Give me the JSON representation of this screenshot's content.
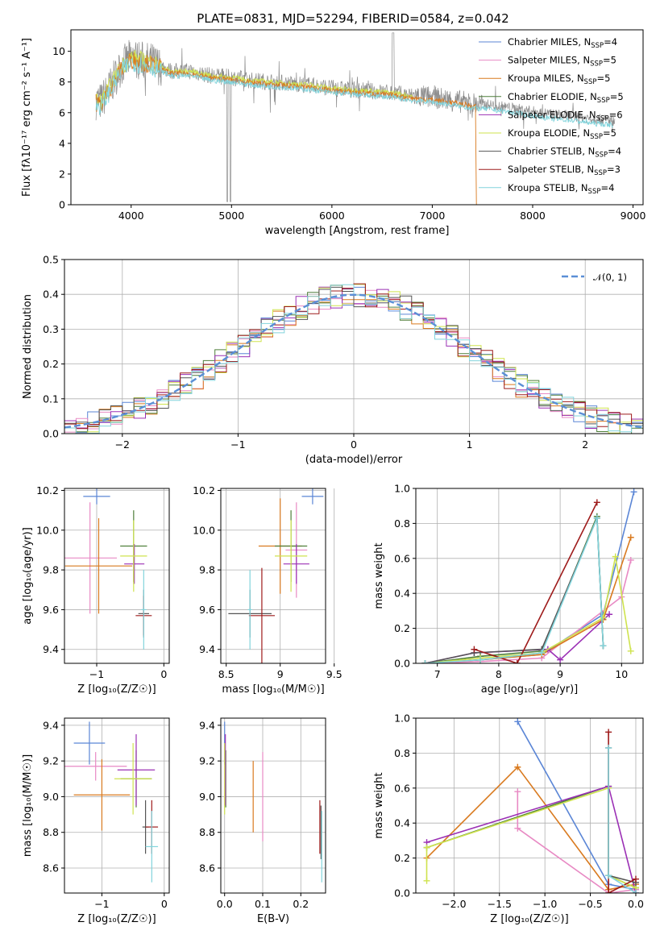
{
  "title": "PLATE=0831, MJD=52294, FIBERID=0584, z=0.042",
  "colors": {
    "Chabrier MILES": "#5b86d6",
    "Salpeter MILES": "#e88ac4",
    "Kroupa MILES": "#d97a1f",
    "Chabrier ELODIE": "#4f7f3a",
    "Salpeter ELODIE": "#9b30b5",
    "Kroupa ELODIE": "#cfe34e",
    "Chabrier STELIB": "#555555",
    "Salpeter STELIB": "#9e1b1b",
    "Kroupa STELIB": "#82d4dc",
    "data": "#8c8c8c",
    "normal": "#5b8fd6"
  },
  "chart_data": [
    {
      "type": "line",
      "id": "spectrum",
      "title": "PLATE=0831, MJD=52294, FIBERID=0584, z=0.042",
      "xlabel": "wavelength [Angstrom, rest frame]",
      "ylabel": "Flux [fλ10⁻¹⁷ erg cm⁻² s⁻¹ A⁻¹]",
      "xlim": [
        3400,
        9100
      ],
      "ylim": [
        0,
        11.4
      ],
      "xticks": [
        4000,
        5000,
        6000,
        7000,
        8000,
        9000
      ],
      "yticks": [
        0,
        2,
        4,
        6,
        8,
        10
      ],
      "legend_position": "top-right",
      "legend": [
        {
          "label": "Chabrier MILES, N",
          "sub": "SSP",
          "suffix": "=4"
        },
        {
          "label": "Salpeter MILES, N",
          "sub": "SSP",
          "suffix": "=5"
        },
        {
          "label": "Kroupa MILES, N",
          "sub": "SSP",
          "suffix": "=5"
        },
        {
          "label": "Chabrier ELODIE, N",
          "sub": "SSP",
          "suffix": "=5"
        },
        {
          "label": "Salpeter ELODIE, N",
          "sub": "SSP",
          "suffix": "=6"
        },
        {
          "label": "Kroupa ELODIE, N",
          "sub": "SSP",
          "suffix": "=5"
        },
        {
          "label": "Chabrier STELIB, N",
          "sub": "SSP",
          "suffix": "=4"
        },
        {
          "label": "Salpeter STELIB, N",
          "sub": "SSP",
          "suffix": "=3"
        },
        {
          "label": "Kroupa STELIB, N",
          "sub": "SSP",
          "suffix": "=4"
        }
      ],
      "continuum": {
        "x": [
          3650,
          3700,
          3800,
          3900,
          4000,
          4100,
          4200,
          4300,
          4400,
          4600,
          4800,
          5000,
          5200,
          5400,
          5600,
          5800,
          6000,
          6200,
          6400,
          6600,
          6800,
          7000,
          7200,
          7400,
          7600,
          7800,
          8000,
          8200,
          8400,
          8600,
          8800
        ],
        "y": [
          6.8,
          6.7,
          7.8,
          9.0,
          9.6,
          9.4,
          9.3,
          9.0,
          8.7,
          8.7,
          8.4,
          8.3,
          8.1,
          8.0,
          7.9,
          7.8,
          7.6,
          7.5,
          7.4,
          7.3,
          7.1,
          7.0,
          6.8,
          6.6,
          6.5,
          6.3,
          6.1,
          5.9,
          5.8,
          5.6,
          5.5
        ]
      }
    },
    {
      "type": "histogram",
      "id": "residuals",
      "xlabel": "(data-model)/error",
      "ylabel": "Normed distribution",
      "xlim": [
        -2.5,
        2.5
      ],
      "ylim": [
        0,
        0.5
      ],
      "xticks": [
        -2,
        -1,
        0,
        1,
        2
      ],
      "yticks": [
        0.0,
        0.1,
        0.2,
        0.3,
        0.4,
        0.5
      ],
      "legend": "𝒩(0, 1)",
      "legend_position": "top-right",
      "bin_width": 0.1
    },
    {
      "type": "errorbar",
      "id": "age-vs-Z",
      "xlabel": "Z [log₁₀(Z/Z☉)]",
      "ylabel": "age  [log₁₀(age/yr)]",
      "xlim": [
        -1.48,
        0.08
      ],
      "ylim": [
        9.33,
        10.21
      ],
      "xticks": [
        -1,
        0
      ],
      "yticks": [
        9.4,
        9.6,
        9.8,
        10.0,
        10.2
      ],
      "points": [
        {
          "model": "Chabrier MILES",
          "x": -1.0,
          "xerr": 0.2,
          "y": 10.17,
          "yerr": 0.04
        },
        {
          "model": "Salpeter MILES",
          "x": -1.1,
          "xerr": 0.4,
          "y": 9.86,
          "yerr": 0.28
        },
        {
          "model": "Kroupa MILES",
          "x": -0.97,
          "xerr": 0.5,
          "y": 9.82,
          "yerr": 0.24
        },
        {
          "model": "Chabrier ELODIE",
          "x": -0.45,
          "xerr": 0.2,
          "y": 9.92,
          "yerr": 0.18
        },
        {
          "model": "Salpeter ELODIE",
          "x": -0.44,
          "xerr": 0.15,
          "y": 9.83,
          "yerr": 0.1
        },
        {
          "model": "Kroupa ELODIE",
          "x": -0.45,
          "xerr": 0.2,
          "y": 9.87,
          "yerr": 0.18
        },
        {
          "model": "Chabrier STELIB",
          "x": -0.3,
          "xerr": 0.08,
          "y": 9.58,
          "yerr": 0.12
        },
        {
          "model": "Salpeter STELIB",
          "x": -0.3,
          "xerr": 0.12,
          "y": 9.57,
          "yerr": 0.1
        },
        {
          "model": "Kroupa STELIB",
          "x": -0.3,
          "xerr": 0.04,
          "y": 9.6,
          "yerr": 0.2
        }
      ]
    },
    {
      "type": "errorbar",
      "id": "age-vs-mass",
      "xlabel": "mass [log₁₀(M/M☉)]",
      "xlim": [
        8.45,
        9.42
      ],
      "ylim": [
        9.33,
        10.21
      ],
      "xticks": [
        8.5,
        9.0,
        9.5
      ],
      "yticks": [
        9.4,
        9.6,
        9.8,
        10.0,
        10.2
      ],
      "points": [
        {
          "model": "Chabrier MILES",
          "x": 9.3,
          "xerr": 0.1,
          "y": 10.17,
          "yerr": 0.04
        },
        {
          "model": "Salpeter MILES",
          "x": 9.15,
          "xerr": 0.1,
          "y": 9.9,
          "yerr": 0.24
        },
        {
          "model": "Kroupa MILES",
          "x": 9.0,
          "xerr": 0.2,
          "y": 9.92,
          "yerr": 0.24
        },
        {
          "model": "Chabrier ELODIE",
          "x": 9.1,
          "xerr": 0.15,
          "y": 9.92,
          "yerr": 0.18
        },
        {
          "model": "Salpeter ELODIE",
          "x": 9.15,
          "xerr": 0.12,
          "y": 9.83,
          "yerr": 0.1
        },
        {
          "model": "Kroupa ELODIE",
          "x": 9.1,
          "xerr": 0.15,
          "y": 9.87,
          "yerr": 0.18
        },
        {
          "model": "Chabrier STELIB",
          "x": 8.72,
          "xerr": 0.2,
          "y": 9.58,
          "yerr": 0.12
        },
        {
          "model": "Salpeter STELIB",
          "x": 8.83,
          "xerr": 0.12,
          "y": 9.57,
          "yerr": 0.24
        },
        {
          "model": "Kroupa STELIB",
          "x": 8.72,
          "xerr": 0.02,
          "y": 9.6,
          "yerr": 0.2
        }
      ]
    },
    {
      "type": "line",
      "id": "mass-weight-vs-age",
      "xlabel": "age  [log₁₀(age/yr)]",
      "ylabel": "mass weight",
      "xlim": [
        6.65,
        10.35
      ],
      "ylim": [
        0,
        1
      ],
      "xticks": [
        7,
        8,
        9,
        10
      ],
      "yticks": [
        0.0,
        0.2,
        0.4,
        0.6,
        0.8,
        1.0
      ],
      "series": [
        {
          "model": "Chabrier MILES",
          "x": [
            6.8,
            7.7,
            8.7,
            9.7,
            10.2
          ],
          "y": [
            0.0,
            0.02,
            0.05,
            0.28,
            0.98
          ]
        },
        {
          "model": "Salpeter MILES",
          "x": [
            6.8,
            7.7,
            8.7,
            10.0,
            10.15
          ],
          "y": [
            0.0,
            0.01,
            0.03,
            0.38,
            0.59
          ]
        },
        {
          "model": "Kroupa MILES",
          "x": [
            6.8,
            7.7,
            8.7,
            9.7,
            10.15
          ],
          "y": [
            0.0,
            0.02,
            0.05,
            0.25,
            0.72
          ]
        },
        {
          "model": "Chabrier ELODIE",
          "x": [
            6.8,
            7.7,
            8.7,
            9.6,
            9.7
          ],
          "y": [
            0.0,
            0.04,
            0.07,
            0.84,
            0.1
          ]
        },
        {
          "model": "Salpeter ELODIE",
          "x": [
            6.8,
            7.6,
            8.8,
            9.0,
            9.8
          ],
          "y": [
            0.0,
            0.06,
            0.08,
            0.02,
            0.28
          ]
        },
        {
          "model": "Kroupa ELODIE",
          "x": [
            6.8,
            7.7,
            8.7,
            9.7,
            9.9,
            10.15
          ],
          "y": [
            0.0,
            0.03,
            0.06,
            0.26,
            0.61,
            0.07
          ]
        },
        {
          "model": "Chabrier STELIB",
          "x": [
            6.8,
            7.6,
            8.7,
            9.6,
            9.7
          ],
          "y": [
            0.0,
            0.06,
            0.08,
            0.83,
            0.1
          ]
        },
        {
          "model": "Salpeter STELIB",
          "x": [
            7.6,
            8.3,
            9.6
          ],
          "y": [
            0.08,
            0.0,
            0.92
          ]
        },
        {
          "model": "Kroupa STELIB",
          "x": [
            6.8,
            7.7,
            8.7,
            9.6,
            9.7
          ],
          "y": [
            0.0,
            0.02,
            0.06,
            0.83,
            0.1
          ]
        }
      ]
    },
    {
      "type": "errorbar",
      "id": "mass-vs-Z",
      "xlabel": "Z [log₁₀(Z/Z☉)]",
      "ylabel": "mass [log₁₀(M/M☉)]",
      "xlim": [
        -1.6,
        0.08
      ],
      "ylim": [
        8.46,
        9.44
      ],
      "xticks": [
        -1,
        0
      ],
      "yticks": [
        8.6,
        8.8,
        9.0,
        9.2,
        9.4
      ],
      "points": [
        {
          "model": "Chabrier MILES",
          "x": -1.2,
          "xerr": 0.25,
          "y": 9.3,
          "yerr": 0.12
        },
        {
          "model": "Salpeter MILES",
          "x": -1.1,
          "xerr": 0.5,
          "y": 9.17,
          "yerr": 0.08
        },
        {
          "model": "Kroupa MILES",
          "x": -1.0,
          "xerr": 0.45,
          "y": 9.01,
          "yerr": 0.2
        },
        {
          "model": "Chabrier ELODIE",
          "x": -0.45,
          "xerr": 0.25,
          "y": 9.1,
          "yerr": 0.16
        },
        {
          "model": "Salpeter ELODIE",
          "x": -0.45,
          "xerr": 0.3,
          "y": 9.15,
          "yerr": 0.2
        },
        {
          "model": "Kroupa ELODIE",
          "x": -0.5,
          "xerr": 0.3,
          "y": 9.1,
          "yerr": 0.2
        },
        {
          "model": "Chabrier STELIB",
          "x": -0.3,
          "xerr": 0.05,
          "y": 8.83,
          "yerr": 0.15
        },
        {
          "model": "Salpeter STELIB",
          "x": -0.2,
          "xerr": 0.1,
          "y": 8.83,
          "yerr": 0.15
        },
        {
          "model": "Kroupa STELIB",
          "x": -0.2,
          "xerr": 0.1,
          "y": 8.72,
          "yerr": 0.2
        }
      ]
    },
    {
      "type": "errorbar",
      "id": "mass-vs-ebv",
      "xlabel": "E(B-V)",
      "xlim": [
        -0.01,
        0.265
      ],
      "ylim": [
        8.46,
        9.44
      ],
      "xticks": [
        0.0,
        0.1,
        0.2
      ],
      "yticks": [
        8.6,
        8.8,
        9.0,
        9.2,
        9.4
      ],
      "points": [
        {
          "model": "Chabrier MILES",
          "x": 0.0,
          "y": 9.3,
          "yerr": 0.12
        },
        {
          "model": "Salpeter MILES",
          "x": 0.1,
          "y": 9.0,
          "yerr": 0.25
        },
        {
          "model": "Kroupa MILES",
          "x": 0.075,
          "y": 9.0,
          "yerr": 0.2
        },
        {
          "model": "Chabrier ELODIE",
          "x": 0.003,
          "y": 9.1,
          "yerr": 0.16
        },
        {
          "model": "Salpeter ELODIE",
          "x": 0.002,
          "y": 9.15,
          "yerr": 0.2
        },
        {
          "model": "Kroupa ELODIE",
          "x": 0.0,
          "y": 9.1,
          "yerr": 0.2
        },
        {
          "model": "Chabrier STELIB",
          "x": 0.253,
          "y": 8.8,
          "yerr": 0.15
        },
        {
          "model": "Salpeter STELIB",
          "x": 0.25,
          "y": 8.83,
          "yerr": 0.15
        },
        {
          "model": "Kroupa STELIB",
          "x": 0.255,
          "y": 8.72,
          "yerr": 0.2
        }
      ]
    },
    {
      "type": "line",
      "id": "mass-weight-vs-Z",
      "xlabel": "Z [log₁₀(Z/Z☉)]",
      "ylabel": "mass weight",
      "xlim": [
        -2.42,
        0.08
      ],
      "ylim": [
        0,
        1
      ],
      "xticks": [
        -2.0,
        -1.5,
        -1.0,
        -0.5,
        0.0
      ],
      "yticks": [
        0.0,
        0.2,
        0.4,
        0.6,
        0.8,
        1.0
      ],
      "series": [
        {
          "model": "Chabrier MILES",
          "x": [
            -1.3,
            -0.3,
            0.0
          ],
          "y": [
            0.98,
            0.05,
            0.02
          ]
        },
        {
          "model": "Salpeter MILES",
          "x": [
            -1.3,
            -1.3,
            -0.3,
            0.0
          ],
          "y": [
            0.58,
            0.37,
            0.0,
            0.02
          ]
        },
        {
          "model": "Kroupa MILES",
          "x": [
            -2.3,
            -1.3,
            -0.3,
            0.0
          ],
          "y": [
            0.2,
            0.72,
            0.02,
            0.05
          ]
        },
        {
          "model": "Chabrier ELODIE",
          "x": [
            -2.3,
            -0.3,
            -0.3,
            0.0
          ],
          "y": [
            0.26,
            0.61,
            0.1,
            0.03
          ]
        },
        {
          "model": "Salpeter ELODIE",
          "x": [
            -2.3,
            -0.3,
            0.0
          ],
          "y": [
            0.29,
            0.61,
            0.0
          ]
        },
        {
          "model": "Kroupa ELODIE",
          "x": [
            -2.3,
            -2.3,
            -0.3,
            -0.3,
            0.0
          ],
          "y": [
            0.07,
            0.26,
            0.6,
            0.1,
            0.03
          ]
        },
        {
          "model": "Chabrier STELIB",
          "x": [
            -0.3,
            -0.3,
            0.0
          ],
          "y": [
            0.83,
            0.1,
            0.06
          ]
        },
        {
          "model": "Salpeter STELIB",
          "x": [
            -0.3,
            -0.3,
            0.0
          ],
          "y": [
            0.92,
            0.0,
            0.08
          ]
        },
        {
          "model": "Kroupa STELIB",
          "x": [
            -0.3,
            -0.3,
            0.0
          ],
          "y": [
            0.83,
            0.1,
            0.0
          ]
        }
      ]
    }
  ]
}
